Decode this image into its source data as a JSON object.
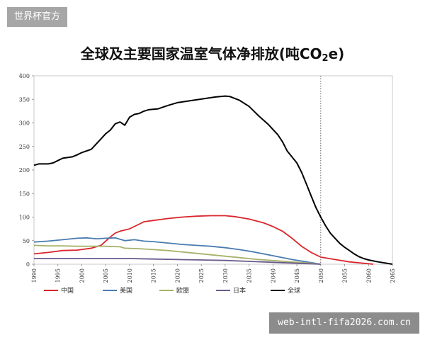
{
  "watermark_top": "世界杯官方",
  "watermark_bottom": "web-intl-fifa2026.com.cn",
  "chart_data": {
    "type": "line",
    "title_main": "全球及主要国家温室气体净排放(吨CO",
    "title_sub": "2",
    "title_end": "e)",
    "ylim": [
      0,
      400
    ],
    "yticks": [
      "0",
      "50",
      "100",
      "150",
      "200",
      "250",
      "300",
      "350",
      "400"
    ],
    "xlim": [
      1990,
      2065
    ],
    "xticks": [
      "1990",
      "1995",
      "2000",
      "2005",
      "2010",
      "2015",
      "2020",
      "2025",
      "2030",
      "2035",
      "2040",
      "2045",
      "2050",
      "2055",
      "2060",
      "2065"
    ],
    "reference_line_x": 2050,
    "legend_position": "bottom",
    "series": [
      {
        "name": "中国",
        "color": "#d9262c",
        "points": [
          [
            1990,
            22
          ],
          [
            1993,
            25
          ],
          [
            1996,
            29
          ],
          [
            1999,
            30
          ],
          [
            2002,
            34
          ],
          [
            2004,
            40
          ],
          [
            2006,
            58
          ],
          [
            2007,
            66
          ],
          [
            2008,
            70
          ],
          [
            2010,
            75
          ],
          [
            2012,
            85
          ],
          [
            2013,
            90
          ],
          [
            2015,
            93
          ],
          [
            2018,
            97
          ],
          [
            2021,
            100
          ],
          [
            2024,
            102
          ],
          [
            2027,
            103
          ],
          [
            2030,
            103
          ],
          [
            2032,
            101
          ],
          [
            2035,
            96
          ],
          [
            2038,
            88
          ],
          [
            2040,
            80
          ],
          [
            2042,
            70
          ],
          [
            2044,
            55
          ],
          [
            2046,
            38
          ],
          [
            2048,
            25
          ],
          [
            2050,
            15
          ],
          [
            2053,
            10
          ],
          [
            2056,
            5
          ],
          [
            2059,
            2
          ],
          [
            2061,
            0
          ]
        ]
      },
      {
        "name": "美国",
        "color": "#4a7cb0",
        "points": [
          [
            1990,
            47
          ],
          [
            1993,
            49
          ],
          [
            1996,
            52
          ],
          [
            1999,
            55
          ],
          [
            2001,
            56
          ],
          [
            2003,
            54
          ],
          [
            2005,
            55
          ],
          [
            2007,
            56
          ],
          [
            2009,
            50
          ],
          [
            2011,
            52
          ],
          [
            2013,
            49
          ],
          [
            2015,
            48
          ],
          [
            2018,
            45
          ],
          [
            2021,
            42
          ],
          [
            2024,
            40
          ],
          [
            2027,
            38
          ],
          [
            2030,
            35
          ],
          [
            2033,
            31
          ],
          [
            2036,
            26
          ],
          [
            2040,
            18
          ],
          [
            2044,
            10
          ],
          [
            2047,
            5
          ],
          [
            2050,
            0
          ]
        ]
      },
      {
        "name": "欧盟",
        "color": "#a8b26a",
        "points": [
          [
            1990,
            40
          ],
          [
            1993,
            39
          ],
          [
            1996,
            39
          ],
          [
            1999,
            38
          ],
          [
            2002,
            38
          ],
          [
            2005,
            38
          ],
          [
            2008,
            37
          ],
          [
            2009,
            34
          ],
          [
            2012,
            33
          ],
          [
            2015,
            31
          ],
          [
            2018,
            29
          ],
          [
            2021,
            26
          ],
          [
            2024,
            23
          ],
          [
            2027,
            20
          ],
          [
            2030,
            17
          ],
          [
            2033,
            14
          ],
          [
            2037,
            10
          ],
          [
            2041,
            7
          ],
          [
            2045,
            4
          ],
          [
            2048,
            2
          ],
          [
            2050,
            0
          ]
        ]
      },
      {
        "name": "日本",
        "color": "#6b5a8c",
        "points": [
          [
            1990,
            12
          ],
          [
            1995,
            12
          ],
          [
            2000,
            12
          ],
          [
            2005,
            12
          ],
          [
            2010,
            12
          ],
          [
            2015,
            11
          ],
          [
            2020,
            10
          ],
          [
            2025,
            9
          ],
          [
            2030,
            8
          ],
          [
            2035,
            6
          ],
          [
            2040,
            4
          ],
          [
            2045,
            2
          ],
          [
            2050,
            0
          ]
        ]
      },
      {
        "name": "全球",
        "color": "#000000",
        "points": [
          [
            1990,
            210
          ],
          [
            1991,
            213
          ],
          [
            1993,
            213
          ],
          [
            1994,
            215
          ],
          [
            1995,
            220
          ],
          [
            1996,
            225
          ],
          [
            1998,
            228
          ],
          [
            1999,
            232
          ],
          [
            2000,
            237
          ],
          [
            2002,
            244
          ],
          [
            2003,
            255
          ],
          [
            2005,
            277
          ],
          [
            2006,
            285
          ],
          [
            2007,
            298
          ],
          [
            2008,
            302
          ],
          [
            2009,
            295
          ],
          [
            2010,
            312
          ],
          [
            2011,
            318
          ],
          [
            2012,
            320
          ],
          [
            2013,
            325
          ],
          [
            2014,
            328
          ],
          [
            2016,
            330
          ],
          [
            2018,
            337
          ],
          [
            2020,
            343
          ],
          [
            2022,
            346
          ],
          [
            2024,
            349
          ],
          [
            2026,
            352
          ],
          [
            2028,
            355
          ],
          [
            2030,
            357
          ],
          [
            2031,
            356
          ],
          [
            2033,
            348
          ],
          [
            2035,
            335
          ],
          [
            2037,
            315
          ],
          [
            2039,
            297
          ],
          [
            2041,
            275
          ],
          [
            2042,
            260
          ],
          [
            2043,
            240
          ],
          [
            2045,
            215
          ],
          [
            2046,
            195
          ],
          [
            2047,
            170
          ],
          [
            2048,
            145
          ],
          [
            2049,
            120
          ],
          [
            2050,
            100
          ],
          [
            2051,
            82
          ],
          [
            2052,
            66
          ],
          [
            2053,
            55
          ],
          [
            2054,
            44
          ],
          [
            2055,
            36
          ],
          [
            2056,
            29
          ],
          [
            2057,
            22
          ],
          [
            2058,
            16
          ],
          [
            2059,
            12
          ],
          [
            2060,
            9
          ],
          [
            2062,
            5
          ],
          [
            2065,
            0
          ]
        ]
      }
    ]
  }
}
